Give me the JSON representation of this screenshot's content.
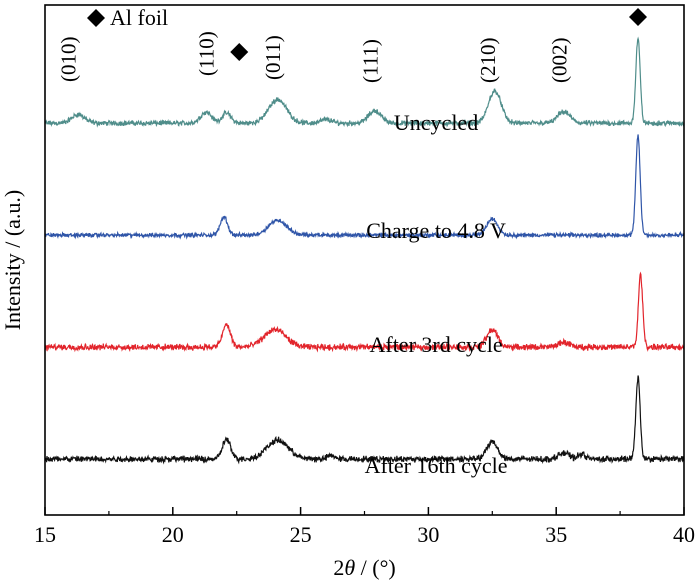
{
  "chart_data": {
    "type": "line",
    "x_range": [
      15,
      40
    ],
    "x_ticks": [
      15,
      20,
      25,
      30,
      35,
      40
    ],
    "xlabel": {
      "prefix": "2",
      "theta": "θ",
      "suffix": " / (°)"
    },
    "ylabel": "Intensity / (a.u.)",
    "grid": false,
    "legend_marker_label": "Al foil",
    "series": [
      {
        "name": "Uncycled",
        "color": "#4f8d8a",
        "baseline": 0,
        "noise": 0.25,
        "peaks": [
          {
            "x": 16.3,
            "h": 0.7,
            "w": 0.35
          },
          {
            "x": 21.3,
            "h": 0.9,
            "w": 0.3
          },
          {
            "x": 22.1,
            "h": 0.8,
            "w": 0.25
          },
          {
            "x": 24.1,
            "h": 1.9,
            "w": 0.5
          },
          {
            "x": 26.0,
            "h": 0.3,
            "w": 0.3
          },
          {
            "x": 27.9,
            "h": 1.0,
            "w": 0.35
          },
          {
            "x": 32.6,
            "h": 2.6,
            "w": 0.35
          },
          {
            "x": 35.3,
            "h": 0.9,
            "w": 0.35
          },
          {
            "x": 38.2,
            "h": 6.8,
            "w": 0.12
          }
        ]
      },
      {
        "name": "Charge to 4.8 V",
        "color": "#2f55a8",
        "baseline": 0,
        "noise": 0.2,
        "peaks": [
          {
            "x": 22.0,
            "h": 1.5,
            "w": 0.2
          },
          {
            "x": 24.1,
            "h": 1.2,
            "w": 0.5
          },
          {
            "x": 32.5,
            "h": 1.3,
            "w": 0.3
          },
          {
            "x": 38.2,
            "h": 8.0,
            "w": 0.12
          }
        ]
      },
      {
        "name": "After 3rd cycle",
        "color": "#e2242b",
        "baseline": 0,
        "noise": 0.3,
        "peaks": [
          {
            "x": 22.1,
            "h": 1.8,
            "w": 0.22
          },
          {
            "x": 24.0,
            "h": 1.4,
            "w": 0.6
          },
          {
            "x": 32.5,
            "h": 1.4,
            "w": 0.3
          },
          {
            "x": 35.3,
            "h": 0.4,
            "w": 0.3
          },
          {
            "x": 38.3,
            "h": 5.8,
            "w": 0.12
          }
        ]
      },
      {
        "name": "After 16th cycle",
        "color": "#111111",
        "baseline": 0,
        "noise": 0.3,
        "peaks": [
          {
            "x": 22.1,
            "h": 1.6,
            "w": 0.22
          },
          {
            "x": 24.1,
            "h": 1.5,
            "w": 0.6
          },
          {
            "x": 26.2,
            "h": 0.3,
            "w": 0.2
          },
          {
            "x": 32.5,
            "h": 1.4,
            "w": 0.3
          },
          {
            "x": 35.3,
            "h": 0.5,
            "w": 0.3
          },
          {
            "x": 36.0,
            "h": 0.4,
            "w": 0.2
          },
          {
            "x": 38.2,
            "h": 6.5,
            "w": 0.12
          }
        ]
      }
    ],
    "annotations": [
      {
        "text": "(010)",
        "x": 16.2
      },
      {
        "text": "(110)",
        "x": 21.6
      },
      {
        "text": "(011)",
        "x": 24.2
      },
      {
        "text": "(111)",
        "x": 28.0
      },
      {
        "text": "(210)",
        "x": 32.6
      },
      {
        "text": "(002)",
        "x": 35.4
      }
    ],
    "al_foil_markers": [
      22.6,
      38.2
    ]
  }
}
